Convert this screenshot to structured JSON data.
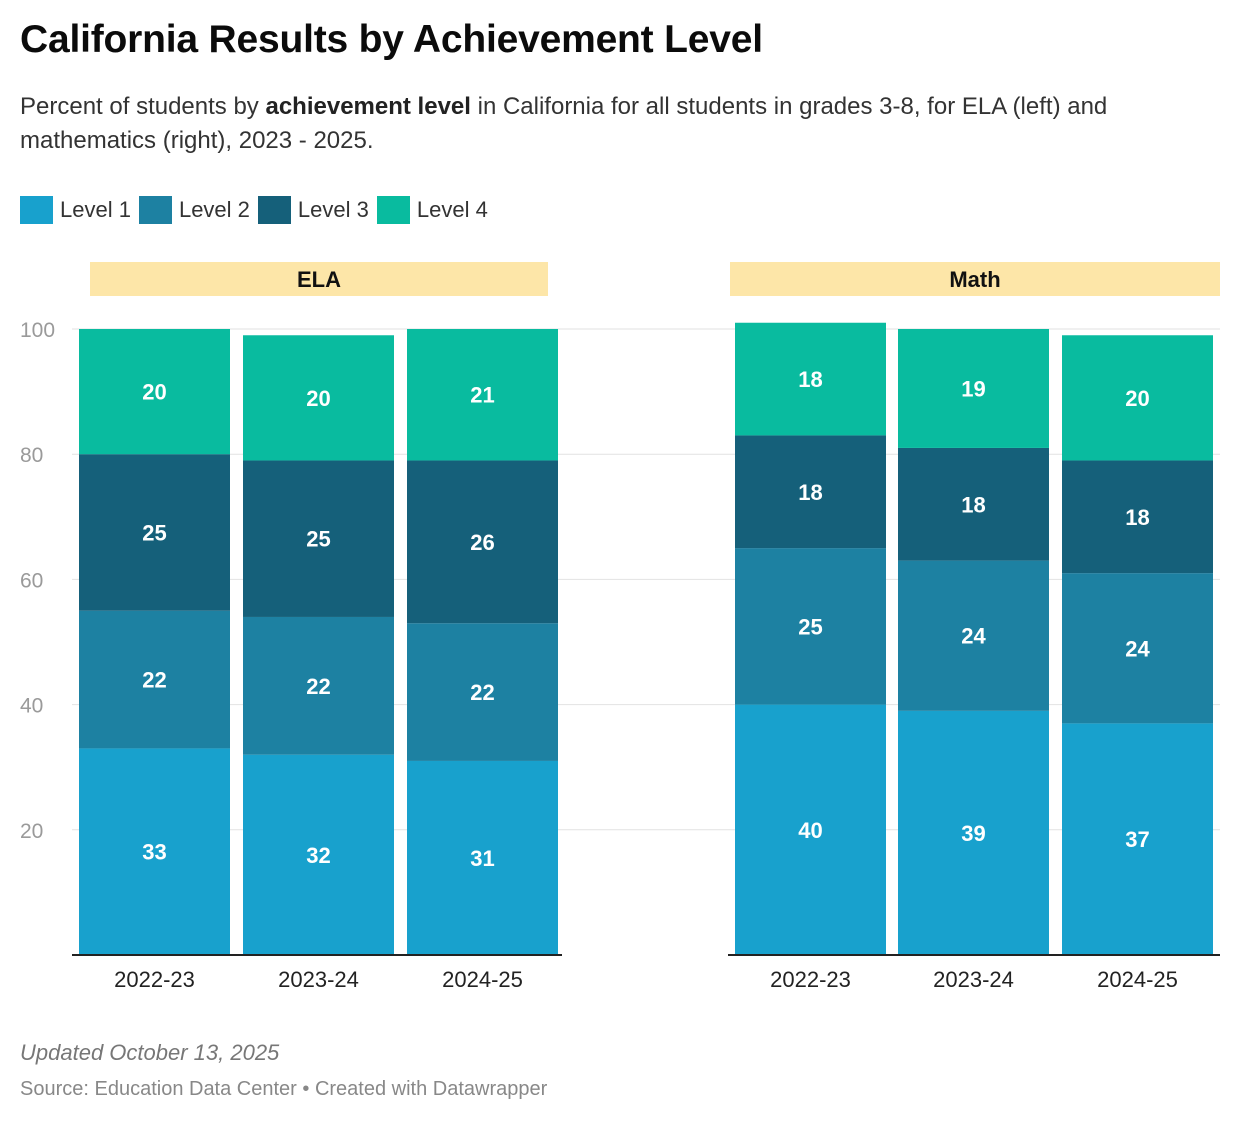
{
  "title": "California Results by Achievement Level",
  "subtitle": {
    "before": "Percent of students by ",
    "bold": "achievement level",
    "after": " in California for all students in grades 3-8, for ELA (left) and mathematics (right), 2023 - 2025."
  },
  "footer": {
    "updated": "Updated October 13, 2025",
    "source": "Source: Education Data Center • Created with Datawrapper"
  },
  "chart_data": {
    "type": "bar",
    "stacked": true,
    "legend_position": "top-left",
    "grid": true,
    "y_ticks": [
      20,
      40,
      60,
      80,
      100
    ],
    "ylim": [
      0,
      100
    ],
    "series": [
      {
        "name": "Level 1",
        "color": "#18a1cd"
      },
      {
        "name": "Level 2",
        "color": "#1d81a2"
      },
      {
        "name": "Level 3",
        "color": "#15607a"
      },
      {
        "name": "Level 4",
        "color": "#09bb9f"
      }
    ],
    "panels": [
      {
        "name": "ELA",
        "categories": [
          "2022-23",
          "2023-24",
          "2024-25"
        ],
        "values": [
          [
            33,
            22,
            25,
            20
          ],
          [
            32,
            22,
            25,
            20
          ],
          [
            31,
            22,
            26,
            21
          ]
        ]
      },
      {
        "name": "Math",
        "categories": [
          "2022-23",
          "2023-24",
          "2024-25"
        ],
        "values": [
          [
            40,
            25,
            18,
            18
          ],
          [
            39,
            24,
            18,
            19
          ],
          [
            37,
            24,
            18,
            20
          ]
        ]
      }
    ],
    "panel_header_color": "#fde6a8"
  }
}
